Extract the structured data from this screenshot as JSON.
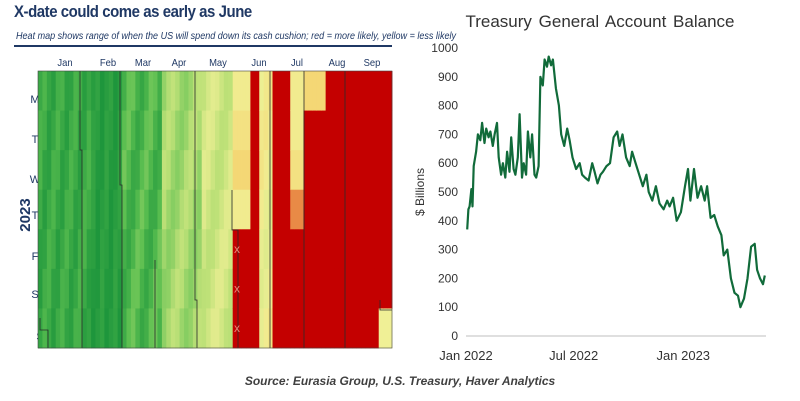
{
  "source": "Source: Eurasia Group, U.S. Treasury, Haver Analytics",
  "chart_data": [
    {
      "type": "heatmap",
      "title": "X-date could come as early as June",
      "subtitle": "Heat map shows range of when the US will spend down its cash cushion; red = more likely, yellow = less likely",
      "ylabel": "2023",
      "months": [
        "Jan",
        "Feb",
        "Mar",
        "Apr",
        "May",
        "Jun",
        "Jul",
        "Aug",
        "Sep"
      ],
      "weekdays": [
        "M",
        "T",
        "W",
        "T",
        "F",
        "S",
        "S"
      ],
      "cross_marker": "x",
      "cross_marker_rows": [
        4,
        5,
        6
      ],
      "colors": {
        "low": "#1e9e3a",
        "mid": "#f2f29a",
        "high": "#c40000"
      }
    },
    {
      "type": "line",
      "title": "Treasury  General Account Balance",
      "ylabel": "$ Billions",
      "xlabel": "",
      "ylim": [
        0,
        1000
      ],
      "yticks": [
        0,
        100,
        200,
        300,
        400,
        500,
        600,
        700,
        800,
        900,
        1000
      ],
      "xticks": [
        "Jan 2022",
        "Jul 2022",
        "Jan 2023"
      ],
      "xtick_dates": [
        "2022-01-01",
        "2022-07-01",
        "2023-01-01"
      ],
      "xlim": [
        "2022-01-01",
        "2023-05-20"
      ],
      "line_color": "#116b3a",
      "grid": false,
      "series": [
        {
          "x": [
            "2022-01-03",
            "2022-01-05",
            "2022-01-07",
            "2022-01-10",
            "2022-01-12",
            "2022-01-14",
            "2022-01-18",
            "2022-01-21",
            "2022-01-25",
            "2022-01-28",
            "2022-02-01",
            "2022-02-04",
            "2022-02-08",
            "2022-02-11",
            "2022-02-15",
            "2022-02-18",
            "2022-02-22",
            "2022-02-25",
            "2022-03-01",
            "2022-03-04",
            "2022-03-08",
            "2022-03-11",
            "2022-03-15",
            "2022-03-18",
            "2022-03-22",
            "2022-03-25",
            "2022-03-29",
            "2022-04-01",
            "2022-04-05",
            "2022-04-08",
            "2022-04-12",
            "2022-04-15",
            "2022-04-19",
            "2022-04-22",
            "2022-04-26",
            "2022-04-29",
            "2022-05-03",
            "2022-05-06",
            "2022-05-10",
            "2022-05-13",
            "2022-05-17",
            "2022-05-20",
            "2022-05-24",
            "2022-05-27",
            "2022-06-01",
            "2022-06-06",
            "2022-06-10",
            "2022-06-15",
            "2022-06-20",
            "2022-06-24",
            "2022-06-29",
            "2022-07-05",
            "2022-07-11",
            "2022-07-15",
            "2022-07-20",
            "2022-07-26",
            "2022-08-01",
            "2022-08-05",
            "2022-08-10",
            "2022-08-15",
            "2022-08-19",
            "2022-08-25",
            "2022-08-31",
            "2022-09-06",
            "2022-09-12",
            "2022-09-16",
            "2022-09-21",
            "2022-09-27",
            "2022-10-03",
            "2022-10-07",
            "2022-10-13",
            "2022-10-19",
            "2022-10-25",
            "2022-10-31",
            "2022-11-04",
            "2022-11-10",
            "2022-11-16",
            "2022-11-22",
            "2022-11-29",
            "2022-12-05",
            "2022-12-09",
            "2022-12-15",
            "2022-12-21",
            "2022-12-28",
            "2023-01-04",
            "2023-01-09",
            "2023-01-13",
            "2023-01-19",
            "2023-01-25",
            "2023-01-31",
            "2023-02-06",
            "2023-02-10",
            "2023-02-16",
            "2023-02-22",
            "2023-02-28",
            "2023-03-06",
            "2023-03-10",
            "2023-03-16",
            "2023-03-22",
            "2023-03-28",
            "2023-04-03",
            "2023-04-07",
            "2023-04-13",
            "2023-04-19",
            "2023-04-25",
            "2023-05-01",
            "2023-05-05",
            "2023-05-10",
            "2023-05-15",
            "2023-05-18"
          ],
          "y": [
            370,
            440,
            450,
            510,
            450,
            590,
            640,
            700,
            680,
            740,
            670,
            720,
            690,
            710,
            660,
            700,
            740,
            620,
            560,
            600,
            550,
            640,
            570,
            690,
            580,
            560,
            620,
            770,
            550,
            600,
            560,
            710,
            620,
            700,
            560,
            550,
            590,
            900,
            870,
            960,
            935,
            970,
            940,
            960,
            860,
            800,
            700,
            660,
            720,
            680,
            620,
            580,
            600,
            560,
            550,
            540,
            600,
            570,
            530,
            560,
            570,
            590,
            600,
            690,
            710,
            660,
            700,
            620,
            590,
            640,
            600,
            560,
            520,
            560,
            500,
            470,
            520,
            460,
            440,
            470,
            450,
            480,
            400,
            430,
            520,
            580,
            470,
            580,
            480,
            520,
            470,
            520,
            410,
            420,
            380,
            350,
            280,
            300,
            200,
            150,
            140,
            100,
            130,
            200,
            310,
            320,
            230,
            200,
            180,
            210
          ]
        }
      ]
    }
  ]
}
